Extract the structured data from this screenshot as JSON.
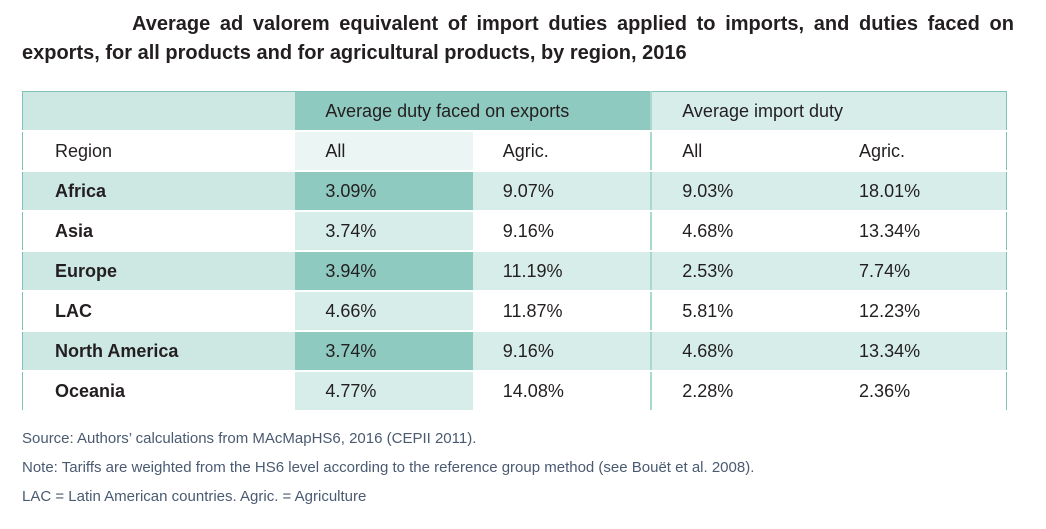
{
  "title": "Average ad valorem equivalent of import duties applied to imports, and duties faced on exports, for all products and for agricultural products, by region, 2016",
  "table": {
    "group_headers": {
      "exports": "Average duty faced on exports",
      "imports": "Average import duty"
    },
    "sub_headers": [
      "Region",
      "All",
      "Agric.",
      "All",
      "Agric."
    ],
    "rows": [
      [
        "Africa",
        "3.09%",
        "9.07%",
        "9.03%",
        "18.01%"
      ],
      [
        "Asia",
        "3.74%",
        "9.16%",
        "4.68%",
        "13.34%"
      ],
      [
        "Europe",
        "3.94%",
        "11.19%",
        "2.53%",
        "7.74%"
      ],
      [
        "LAC",
        "4.66%",
        "11.87%",
        "5.81%",
        "12.23%"
      ],
      [
        "North America",
        "3.74%",
        "9.16%",
        "4.68%",
        "13.34%"
      ],
      [
        "Oceania",
        "4.77%",
        "14.08%",
        "2.28%",
        "2.36%"
      ]
    ]
  },
  "notes": {
    "source": "Source: Authors’ calculations from MAcMapHS6, 2016 (CEPII 2011).",
    "note": "Note: Tariffs are weighted from the HS6 level according to the reference group method (see Bouët et al. 2008).",
    "abbreviations": "LAC = Latin American countries. Agric. = Agriculture"
  }
}
